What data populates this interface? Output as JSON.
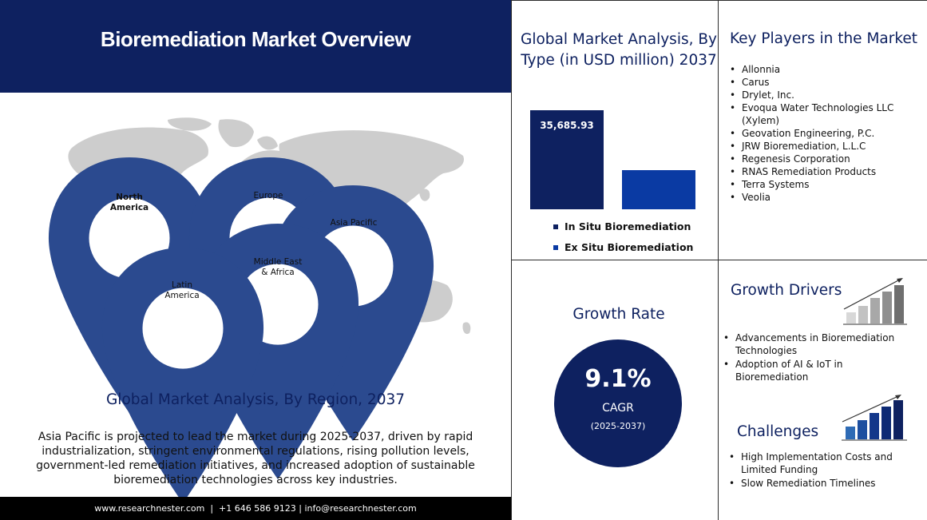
{
  "header": {
    "title": "Bioremediation Market Overview"
  },
  "map": {
    "regions": [
      {
        "label": "North\nAmerica",
        "bold": true
      },
      {
        "label": "Europe",
        "bold": false
      },
      {
        "label": "Asia Pacific",
        "bold": false
      },
      {
        "label": "Middle East\n& Africa",
        "bold": false
      },
      {
        "label": "Latin\nAmerica",
        "bold": false
      }
    ]
  },
  "region_section": {
    "title": "Global Market Analysis, By Region, 2037",
    "description": "Asia Pacific is projected to lead the market during 2025-2037, driven by rapid industrialization, stringent environmental regulations, rising pollution levels, government-led remediation initiatives, and increased adoption of sustainable bioremediation technologies across key industries."
  },
  "footer": {
    "text": "www.researchnester.com  |  +1 646 586 9123 | info@researchnester.com"
  },
  "type_section": {
    "title": "Global Market Analysis, By Type (in USD million) 2037"
  },
  "chart_data": {
    "type": "bar",
    "categories": [
      "In Situ Bioremediation",
      "Ex Situ Bioremediation"
    ],
    "values": [
      35685.93,
      14000
    ],
    "value_labels": [
      "35,685.93",
      ""
    ],
    "colors": [
      "#0e2160",
      "#0a3aa3"
    ]
  },
  "players": {
    "title": "Key Players in the Market",
    "items": [
      "Allonnia",
      "Carus",
      "Drylet, Inc.",
      "Evoqua Water Technologies LLC (Xylem)",
      "Geovation Engineering, P.C.",
      "JRW Bioremediation, L.L.C",
      "Regenesis Corporation",
      "RNAS Remediation Products",
      "Terra Systems",
      "Veolia"
    ]
  },
  "growth": {
    "title": "Growth Rate",
    "rate": "9.1%",
    "label": "CAGR",
    "period": "(2025-2037)"
  },
  "drivers": {
    "title": "Growth Drivers",
    "items": [
      "Advancements in Bioremediation Technologies",
      "Adoption of AI & IoT in Bioremediation"
    ]
  },
  "challenges": {
    "title": "Challenges",
    "items": [
      "High Implementation Costs and Limited Funding",
      "Slow Remediation Timelines"
    ]
  },
  "colors": {
    "navy": "#0e2160",
    "blue": "#0a3aa3",
    "map_grey": "#cdcdcd",
    "pin": "#2b4a8f"
  },
  "icons": [
    "map-pin-icon",
    "rising-bars-grey-icon",
    "rising-bars-blue-icon"
  ]
}
